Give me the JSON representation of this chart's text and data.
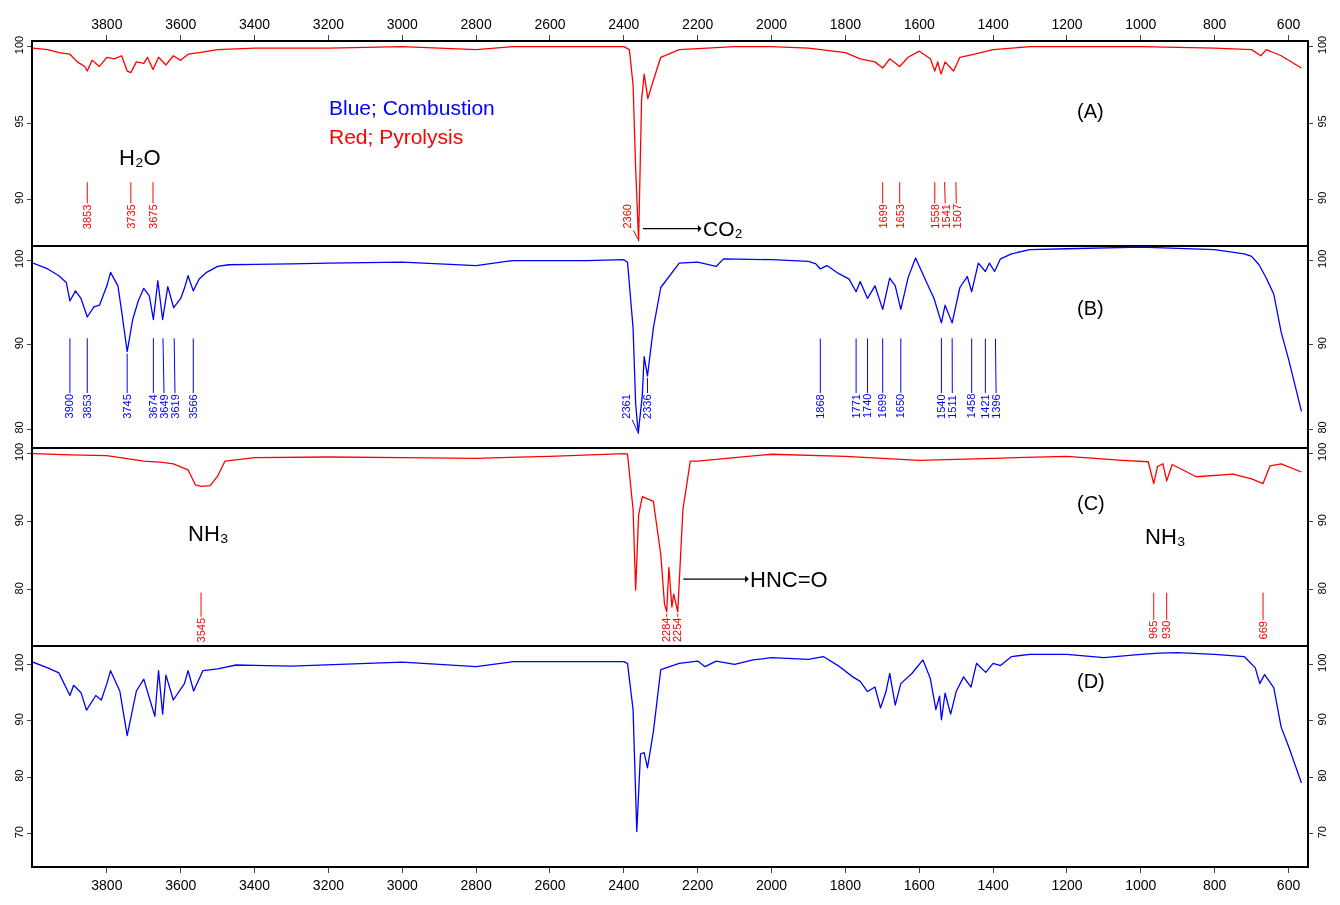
{
  "chart_data": [
    {
      "type": "line",
      "color": "#ff0000",
      "xlim": [
        4000,
        550
      ],
      "ylim": [
        87.0,
        100.3
      ],
      "yticks": [
        90,
        95,
        100
      ],
      "y2lim": [
        87.0,
        100.3
      ],
      "y2ticks": [
        90,
        95,
        100
      ],
      "x2lim": [
        4000,
        550
      ],
      "x2ticks": [
        3800,
        3600,
        3400,
        3200,
        3000,
        2800,
        2600,
        2400,
        2200,
        2000,
        1800,
        1600,
        1400,
        1200,
        1000,
        800,
        600
      ],
      "tick_labels": "y",
      "x": [
        4000,
        3960,
        3930,
        3900,
        3880,
        3860,
        3853,
        3840,
        3820,
        3800,
        3780,
        3760,
        3745,
        3735,
        3720,
        3700,
        3690,
        3675,
        3660,
        3640,
        3620,
        3600,
        3580,
        3550,
        3500,
        3400,
        3200,
        3000,
        2900,
        2800,
        2700,
        2500,
        2400,
        2385,
        2375,
        2368,
        2360,
        2352,
        2345,
        2335,
        2320,
        2300,
        2250,
        2100,
        2000,
        1900,
        1800,
        1760,
        1720,
        1699,
        1680,
        1653,
        1630,
        1600,
        1570,
        1558,
        1550,
        1541,
        1530,
        1507,
        1490,
        1450,
        1400,
        1300,
        1100,
        1000,
        800,
        700,
        675,
        660,
        620,
        565
      ],
      "values": [
        99.9,
        99.8,
        99.6,
        99.5,
        99.0,
        98.7,
        98.4,
        99.1,
        98.7,
        99.3,
        99.2,
        99.4,
        98.4,
        98.3,
        99.0,
        98.9,
        99.3,
        98.5,
        99.3,
        98.8,
        99.4,
        99.1,
        99.5,
        99.6,
        99.8,
        99.9,
        99.9,
        100.0,
        99.9,
        99.8,
        100.0,
        100.0,
        100.0,
        99.8,
        97.5,
        92.0,
        87.3,
        96.5,
        98.2,
        96.6,
        97.8,
        99.3,
        99.8,
        100.0,
        100.0,
        99.9,
        99.6,
        99.2,
        99.0,
        98.6,
        99.2,
        98.7,
        99.3,
        99.7,
        99.2,
        98.4,
        99.0,
        98.2,
        99.0,
        98.4,
        99.3,
        99.5,
        99.8,
        100.0,
        100.0,
        100.0,
        99.9,
        99.8,
        99.4,
        99.8,
        99.4,
        98.6
      ],
      "annotations": [
        {
          "text": "3853",
          "x": 3853,
          "y": 98.4
        },
        {
          "text": "3735",
          "x": 3735,
          "y": 98.3
        },
        {
          "text": "3675",
          "x": 3675,
          "y": 98.5
        },
        {
          "text": "2360",
          "x": 2360,
          "y": 87.3
        },
        {
          "text": "1699",
          "x": 1699,
          "y": 98.6
        },
        {
          "text": "1653",
          "x": 1653,
          "y": 98.7
        },
        {
          "text": "1558",
          "x": 1558,
          "y": 98.4
        },
        {
          "text": "1541",
          "x": 1541,
          "y": 98.2
        },
        {
          "text": "1507",
          "x": 1507,
          "y": 98.4
        },
        "Blue; Combustion",
        "Red; Pyrolysis",
        "H₂O",
        {
          "text": "CO₂",
          "x": 2359,
          "y": 88.1
        },
        "(A)"
      ]
    },
    {
      "type": "line",
      "color": "#0000ff",
      "xlim": [
        4000,
        550
      ],
      "ylim": [
        77.9,
        101.8
      ],
      "yticks": [
        80,
        90,
        100
      ],
      "y2lim": [
        77.9,
        101.8
      ],
      "y2ticks": [
        80,
        90,
        100
      ],
      "tick_labels": "y",
      "x": [
        4000,
        3960,
        3930,
        3910,
        3900,
        3885,
        3870,
        3853,
        3835,
        3820,
        3800,
        3790,
        3770,
        3760,
        3745,
        3730,
        3715,
        3700,
        3685,
        3674,
        3662,
        3649,
        3635,
        3619,
        3600,
        3590,
        3580,
        3566,
        3550,
        3530,
        3500,
        3470,
        3300,
        3200,
        3000,
        2900,
        2800,
        2700,
        2500,
        2400,
        2390,
        2375,
        2368,
        2361,
        2350,
        2345,
        2336,
        2320,
        2300,
        2250,
        2200,
        2150,
        2130,
        2000,
        1900,
        1880,
        1868,
        1850,
        1820,
        1790,
        1771,
        1760,
        1740,
        1720,
        1699,
        1680,
        1665,
        1650,
        1630,
        1610,
        1580,
        1560,
        1540,
        1530,
        1511,
        1490,
        1470,
        1458,
        1440,
        1421,
        1410,
        1396,
        1380,
        1350,
        1300,
        1200,
        1000,
        800,
        720,
        700,
        680,
        660,
        640,
        620,
        600,
        565
      ],
      "values": [
        99.7,
        99.0,
        98.2,
        97.4,
        95.2,
        96.4,
        95.5,
        93.3,
        94.5,
        94.7,
        97.0,
        98.6,
        97.0,
        94.0,
        89.2,
        93.0,
        95.2,
        96.7,
        95.8,
        93.0,
        97.6,
        93.0,
        96.9,
        94.4,
        95.5,
        96.7,
        98.2,
        96.4,
        97.8,
        98.6,
        99.3,
        99.5,
        99.6,
        99.7,
        99.8,
        99.6,
        99.4,
        100.0,
        100.0,
        100.1,
        99.8,
        92.0,
        83.0,
        79.5,
        84.0,
        88.6,
        86.3,
        92.0,
        96.8,
        99.7,
        99.8,
        99.3,
        100.2,
        100.1,
        99.9,
        99.6,
        99.0,
        99.4,
        98.5,
        97.8,
        96.3,
        97.5,
        95.5,
        97.0,
        94.2,
        97.9,
        97.0,
        94.2,
        98.0,
        100.3,
        97.4,
        95.5,
        92.6,
        94.7,
        92.6,
        96.8,
        98.1,
        96.3,
        99.7,
        98.7,
        99.7,
        98.7,
        100.2,
        100.8,
        101.3,
        101.4,
        101.6,
        101.3,
        100.8,
        100.5,
        99.5,
        97.9,
        96.0,
        91.5,
        88.3,
        82.1
      ],
      "annotations": [
        {
          "text": "3900",
          "x": 3900,
          "y": 95.2
        },
        {
          "text": "3853",
          "x": 3853,
          "y": 93.3
        },
        {
          "text": "3745",
          "x": 3745,
          "y": 89.2
        },
        {
          "text": "3674",
          "x": 3674,
          "y": 93.0
        },
        {
          "text": "3649",
          "x": 3649,
          "y": 93.0
        },
        {
          "text": "3619",
          "x": 3619,
          "y": 94.4
        },
        {
          "text": "3566",
          "x": 3566,
          "y": 96.4
        },
        {
          "text": "2361",
          "x": 2361,
          "y": 79.5
        },
        {
          "text": "2336",
          "x": 2336,
          "y": 86.3
        },
        {
          "text": "1868",
          "x": 1868,
          "y": 99.0
        },
        {
          "text": "1771",
          "x": 1771,
          "y": 96.3
        },
        {
          "text": "1740",
          "x": 1740,
          "y": 95.5
        },
        {
          "text": "1699",
          "x": 1699,
          "y": 94.2
        },
        {
          "text": "1650",
          "x": 1650,
          "y": 94.2
        },
        {
          "text": "1540",
          "x": 1540,
          "y": 92.6
        },
        {
          "text": "1511",
          "x": 1511,
          "y": 92.6
        },
        {
          "text": "1458",
          "x": 1458,
          "y": 96.3
        },
        {
          "text": "1421",
          "x": 1421,
          "y": 98.7
        },
        {
          "text": "1396",
          "x": 1396,
          "y": 98.7
        },
        "(B)"
      ]
    },
    {
      "type": "line",
      "color": "#ff0000",
      "xlim": [
        4000,
        550
      ],
      "ylim": [
        71.9,
        101.0
      ],
      "yticks": [
        80,
        90,
        100
      ],
      "y2lim": [
        71.9,
        101.0
      ],
      "y2ticks": [
        80,
        90,
        100
      ],
      "tick_labels": "y",
      "x": [
        4000,
        3900,
        3800,
        3700,
        3650,
        3620,
        3580,
        3560,
        3545,
        3520,
        3500,
        3480,
        3400,
        3200,
        3000,
        2800,
        2600,
        2400,
        2390,
        2375,
        2368,
        2360,
        2350,
        2320,
        2300,
        2290,
        2284,
        2278,
        2270,
        2265,
        2254,
        2240,
        2220,
        2200,
        2000,
        1800,
        1600,
        1400,
        1200,
        1050,
        980,
        965,
        955,
        940,
        930,
        915,
        850,
        750,
        700,
        669,
        650,
        620,
        565
      ],
      "values": [
        100.0,
        99.8,
        99.7,
        98.9,
        98.7,
        98.5,
        97.6,
        95.4,
        95.2,
        95.3,
        96.7,
        98.9,
        99.4,
        99.5,
        99.4,
        99.3,
        99.6,
        100.0,
        99.9,
        91.8,
        80.0,
        91.0,
        93.7,
        93.0,
        85.2,
        78.0,
        76.8,
        83.3,
        77.5,
        79.4,
        76.8,
        91.8,
        98.9,
        98.9,
        99.9,
        99.6,
        99.0,
        99.3,
        99.6,
        99.0,
        98.8,
        95.6,
        98.1,
        98.5,
        96.0,
        98.4,
        96.6,
        97.0,
        96.3,
        95.6,
        98.2,
        98.5,
        97.3
      ],
      "annotations": [
        {
          "text": "3545",
          "x": 3545,
          "y": 95.2
        },
        {
          "text": "2284",
          "x": 2284,
          "y": 76.8
        },
        {
          "text": "2254",
          "x": 2254,
          "y": 76.8
        },
        {
          "text": "965",
          "x": 965,
          "y": 95.6
        },
        {
          "text": "930",
          "x": 930,
          "y": 96.0
        },
        {
          "text": "669",
          "x": 669,
          "y": 95.6
        },
        "NH₃",
        {
          "text": "HNC=O",
          "x": 2250,
          "y": 81.6
        },
        "NH₃",
        "(C)"
      ]
    },
    {
      "type": "line",
      "color": "#0000ff",
      "xlim": [
        4000,
        550
      ],
      "xticks": [
        3800,
        3600,
        3400,
        3200,
        3000,
        2800,
        2600,
        2400,
        2200,
        2000,
        1800,
        1600,
        1400,
        1200,
        1000,
        800,
        600
      ],
      "ylim": [
        64.3,
        103.4
      ],
      "yticks": [
        70,
        80,
        90,
        100
      ],
      "y2lim": [
        64.3,
        103.4
      ],
      "y2ticks": [
        70,
        80,
        90,
        100
      ],
      "x": [
        4000,
        3960,
        3930,
        3900,
        3890,
        3870,
        3855,
        3830,
        3815,
        3800,
        3790,
        3765,
        3745,
        3720,
        3700,
        3680,
        3670,
        3660,
        3649,
        3640,
        3620,
        3590,
        3580,
        3565,
        3540,
        3500,
        3450,
        3300,
        3000,
        2800,
        2700,
        2400,
        2390,
        2375,
        2365,
        2355,
        2345,
        2336,
        2320,
        2300,
        2250,
        2200,
        2180,
        2150,
        2100,
        2050,
        2000,
        1900,
        1860,
        1820,
        1780,
        1760,
        1740,
        1720,
        1705,
        1690,
        1680,
        1665,
        1650,
        1620,
        1590,
        1570,
        1555,
        1545,
        1540,
        1530,
        1515,
        1500,
        1480,
        1460,
        1445,
        1420,
        1400,
        1380,
        1350,
        1300,
        1200,
        1100,
        1000,
        950,
        900,
        800,
        720,
        690,
        678,
        665,
        640,
        620,
        600,
        565
      ],
      "values": [
        100.4,
        99.4,
        98.5,
        94.5,
        96.3,
        95.0,
        91.9,
        94.5,
        93.7,
        96.6,
        98.9,
        95.3,
        87.4,
        95.3,
        97.4,
        93.0,
        90.8,
        98.9,
        91.2,
        98.1,
        93.7,
        96.6,
        98.9,
        95.3,
        98.9,
        99.2,
        99.9,
        99.7,
        100.4,
        99.6,
        100.5,
        100.5,
        100.2,
        92.0,
        70.4,
        84.1,
        84.4,
        81.7,
        88.1,
        99.1,
        100.2,
        100.6,
        99.6,
        100.6,
        100.0,
        100.8,
        101.2,
        100.9,
        101.4,
        99.8,
        97.8,
        97.0,
        95.2,
        96.0,
        92.3,
        95.2,
        98.4,
        92.8,
        96.6,
        98.4,
        100.8,
        97.5,
        92.0,
        94.4,
        90.2,
        94.9,
        91.2,
        95.2,
        97.8,
        96.0,
        100.2,
        98.6,
        100.2,
        99.8,
        101.4,
        101.8,
        101.8,
        101.2,
        101.8,
        102.0,
        102.1,
        101.8,
        101.4,
        99.4,
        96.6,
        98.2,
        95.9,
        88.9,
        85.5,
        79.0
      ],
      "annotations": [
        "(D)"
      ]
    }
  ]
}
